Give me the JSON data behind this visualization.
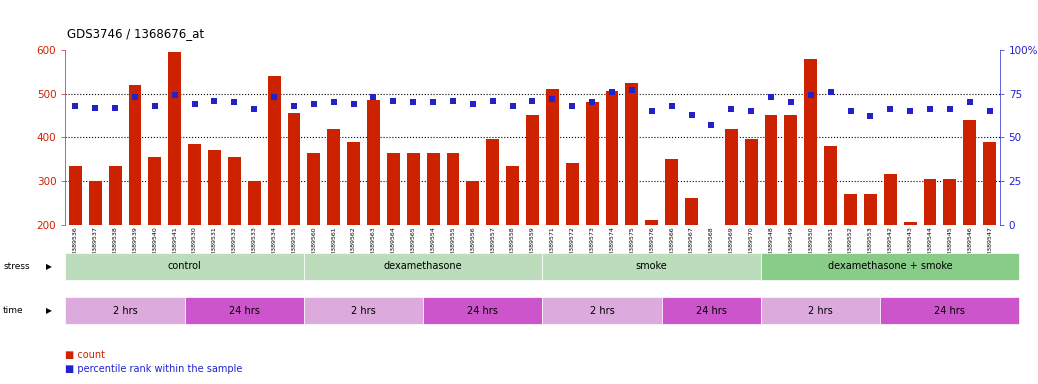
{
  "title": "GDS3746 / 1368676_at",
  "samples": [
    "GSM389536",
    "GSM389537",
    "GSM389538",
    "GSM389539",
    "GSM389540",
    "GSM389541",
    "GSM389530",
    "GSM389531",
    "GSM389532",
    "GSM389533",
    "GSM389534",
    "GSM389535",
    "GSM389560",
    "GSM389561",
    "GSM389562",
    "GSM389563",
    "GSM389564",
    "GSM389565",
    "GSM389554",
    "GSM389555",
    "GSM389556",
    "GSM389557",
    "GSM389558",
    "GSM389559",
    "GSM389571",
    "GSM389572",
    "GSM389573",
    "GSM389574",
    "GSM389575",
    "GSM389576",
    "GSM389566",
    "GSM389567",
    "GSM389568",
    "GSM389569",
    "GSM389570",
    "GSM389548",
    "GSM389549",
    "GSM389550",
    "GSM389551",
    "GSM389552",
    "GSM389553",
    "GSM389542",
    "GSM389543",
    "GSM389544",
    "GSM389545",
    "GSM389546",
    "GSM389547"
  ],
  "counts": [
    335,
    300,
    335,
    520,
    355,
    595,
    385,
    370,
    355,
    300,
    540,
    455,
    365,
    420,
    390,
    485,
    365,
    365,
    365,
    365,
    300,
    395,
    335,
    450,
    510,
    340,
    480,
    505,
    525,
    210,
    350,
    260,
    180,
    420,
    395,
    450,
    450,
    580,
    380,
    270,
    270,
    315,
    205,
    305,
    305,
    440,
    390
  ],
  "percentiles": [
    68,
    67,
    67,
    73,
    68,
    74,
    69,
    71,
    70,
    66,
    73,
    68,
    69,
    70,
    69,
    73,
    71,
    70,
    70,
    71,
    69,
    71,
    68,
    71,
    72,
    68,
    70,
    76,
    77,
    65,
    68,
    63,
    57,
    66,
    65,
    73,
    70,
    74,
    76,
    65,
    62,
    66,
    65,
    66,
    66,
    70,
    65
  ],
  "bar_color": "#cc2200",
  "dot_color": "#2222cc",
  "bg_color": "#ffffff",
  "ylim_left": [
    200,
    600
  ],
  "ylim_right": [
    0,
    100
  ],
  "yticks_left": [
    200,
    300,
    400,
    500,
    600
  ],
  "yticks_right": [
    0,
    25,
    50,
    75,
    100
  ],
  "hlines": [
    300,
    400,
    500
  ],
  "stress_groups": [
    {
      "label": "control",
      "start": 0,
      "end": 12,
      "color": "#bbddbb"
    },
    {
      "label": "dexamethasone",
      "start": 12,
      "end": 24,
      "color": "#bbddbb"
    },
    {
      "label": "smoke",
      "start": 24,
      "end": 35,
      "color": "#bbddbb"
    },
    {
      "label": "dexamethasone + smoke",
      "start": 35,
      "end": 48,
      "color": "#88cc88"
    }
  ],
  "time_groups": [
    {
      "label": "2 hrs",
      "start": 0,
      "end": 6,
      "color": "#ddaadd"
    },
    {
      "label": "24 hrs",
      "start": 6,
      "end": 12,
      "color": "#cc55cc"
    },
    {
      "label": "2 hrs",
      "start": 12,
      "end": 18,
      "color": "#ddaadd"
    },
    {
      "label": "24 hrs",
      "start": 18,
      "end": 24,
      "color": "#cc55cc"
    },
    {
      "label": "2 hrs",
      "start": 24,
      "end": 30,
      "color": "#ddaadd"
    },
    {
      "label": "24 hrs",
      "start": 30,
      "end": 35,
      "color": "#cc55cc"
    },
    {
      "label": "2 hrs",
      "start": 35,
      "end": 41,
      "color": "#ddaadd"
    },
    {
      "label": "24 hrs",
      "start": 41,
      "end": 48,
      "color": "#cc55cc"
    }
  ]
}
